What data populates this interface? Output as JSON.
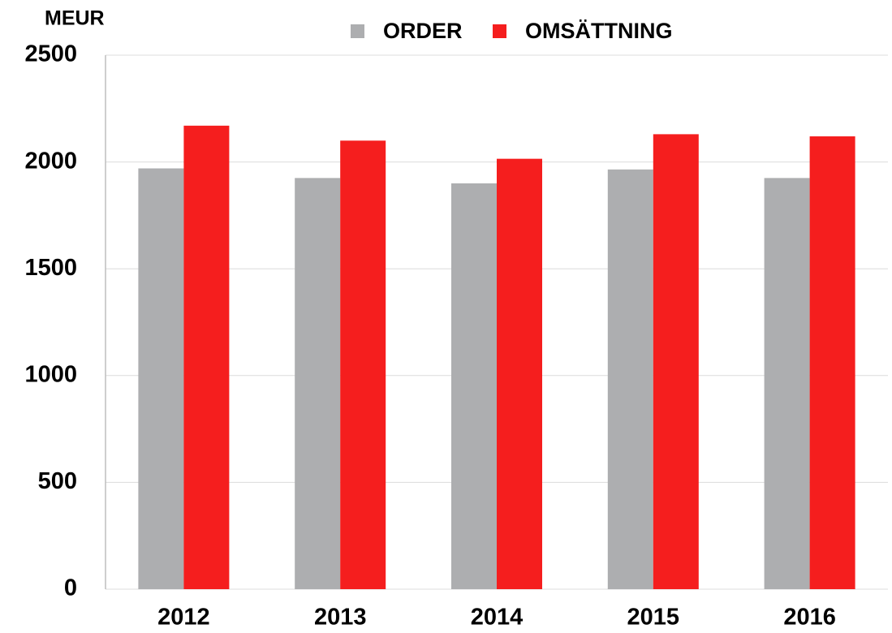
{
  "chart_data": {
    "type": "bar",
    "y_label": "MEUR",
    "categories": [
      "2012",
      "2013",
      "2014",
      "2015",
      "2016"
    ],
    "series": [
      {
        "name": "ORDER",
        "color": "#adaeb0",
        "values": [
          1970,
          1925,
          1900,
          1965,
          1925
        ]
      },
      {
        "name": "OMSÄTTNING",
        "color": "#f51e1e",
        "values": [
          2170,
          2100,
          2015,
          2130,
          2120
        ]
      }
    ],
    "ylim": [
      0,
      2500
    ],
    "yticks": [
      0,
      500,
      1000,
      1500,
      2000,
      2500
    ],
    "grid": true,
    "legend": "top"
  }
}
